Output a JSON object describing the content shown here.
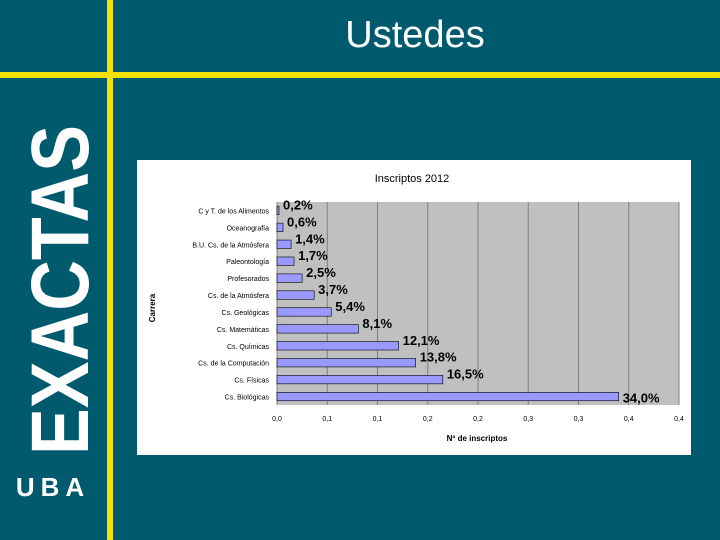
{
  "slide": {
    "title": "Ustedes",
    "logo_text": "EXACTAS",
    "logo_subtext": "UBA"
  },
  "colors": {
    "background": "#005a6e",
    "accent": "#f4e10a",
    "bar_fill": "#9999ff",
    "plot_bg": "#c0c0c0"
  },
  "chart_data": {
    "type": "bar",
    "orientation": "horizontal",
    "title": "Inscriptos 2012",
    "xlabel": "Nº de inscriptos",
    "ylabel": "Carrera",
    "xlim": [
      0,
      0.4
    ],
    "xticks": [
      "0,0",
      "0,1",
      "0,1",
      "0,2",
      "0,2",
      "0,3",
      "0,3",
      "0,4",
      "0,4"
    ],
    "grid": true,
    "categories": [
      "C y T. de los Alimentos",
      "Oceanografía",
      "B.U. Cs. de la Atmósfera",
      "Paleontología",
      "Profesorados",
      "Cs. de la Atmósfera",
      "Cs. Geológicas",
      "Cs. Matemáticas",
      "Cs. Químicas",
      "Cs. de la Computación",
      "Cs. Físicas",
      "Cs. Biológicas"
    ],
    "values": [
      0.002,
      0.006,
      0.014,
      0.017,
      0.025,
      0.037,
      0.054,
      0.081,
      0.121,
      0.138,
      0.165,
      0.34
    ],
    "labels": [
      "0,2%",
      "0,6%",
      "1,4%",
      "1,7%",
      "2,5%",
      "3,7%",
      "5,4%",
      "8,1%",
      "12,1%",
      "13,8%",
      "16,5%",
      "34,0%"
    ]
  }
}
